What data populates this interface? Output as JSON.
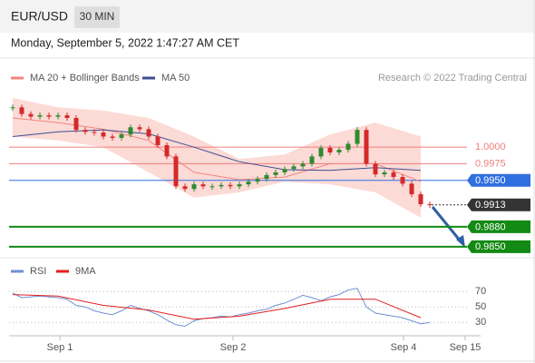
{
  "header": {
    "symbol": "EUR/USD",
    "timeframe": "30 MIN",
    "timestamp": "Monday, September 5, 2022 1:47:27 AM CET"
  },
  "chart_data": [
    {
      "type": "candlestick",
      "copyright": "Research © 2022 Trading Central",
      "up_color": "#2f8a2f",
      "down_color": "#d42a2a",
      "close": [
        1.006,
        1.005,
        1.0046,
        1.0048,
        1.0046,
        1.0048,
        1.0044,
        1.0026,
        1.0023,
        1.0022,
        1.0016,
        1.0014,
        1.0019,
        1.003,
        1.0027,
        1.0016,
        1.0003,
        0.9986,
        0.9941,
        0.9937,
        0.9944,
        0.9941,
        0.9941,
        0.9943,
        0.9941,
        0.9944,
        0.9948,
        0.9952,
        0.9958,
        0.9962,
        0.9967,
        0.9971,
        0.9975,
        0.9986,
        0.9999,
        0.9992,
        0.9996,
        1.0005,
        1.0026,
        0.9975,
        0.9959,
        0.9962,
        0.9955,
        0.9945,
        0.9929,
        0.9914,
        0.9913
      ],
      "series": [
        {
          "name": "MA 20 + Bollinger Bands",
          "color": "#f4847c",
          "band_color": "#fcdad6",
          "x": [
            0,
            5,
            10,
            15,
            20,
            25,
            30,
            35,
            40,
            45
          ],
          "values": [
            1.0044,
            1.0037,
            1.0027,
            1.001,
            0.9962,
            0.9951,
            0.9955,
            0.9975,
            0.9975,
            0.9948
          ],
          "upper": [
            1.0074,
            1.006,
            1.0055,
            1.0044,
            1.0016,
            0.9982,
            0.9989,
            1.0019,
            1.0037,
            1.0016
          ],
          "lower": [
            1.0016,
            1.001,
            1.0,
            0.9962,
            0.9924,
            0.9932,
            0.9948,
            0.9944,
            0.9932,
            0.9894
          ]
        },
        {
          "name": "MA 50",
          "color": "#3b4f91",
          "x": [
            0,
            5,
            10,
            15,
            20,
            25,
            30,
            35,
            40,
            45
          ],
          "values": [
            1.0016,
            1.0023,
            1.0026,
            1.002,
            1.0,
            0.9978,
            0.9966,
            0.9965,
            0.9969,
            0.9965
          ]
        }
      ],
      "levels": [
        {
          "value": 1,
          "label": "1.0000",
          "color": "#f07f7f",
          "marker": "text",
          "line": "thin"
        },
        {
          "value": 0.9975,
          "label": "0.9975",
          "color": "#f07f7f",
          "marker": "text",
          "line": "thin"
        },
        {
          "value": 0.995,
          "label": "0.9950",
          "color": "#2f6fe0",
          "marker": "box",
          "line": "thin"
        },
        {
          "value": 0.9913,
          "label": "0.9913",
          "color": "#333333",
          "marker": "box",
          "line": "dotted"
        },
        {
          "value": 0.988,
          "label": "0.9880",
          "color": "#138a13",
          "marker": "box",
          "line": "thick"
        },
        {
          "value": 0.985,
          "label": "0.9850",
          "color": "#138a13",
          "marker": "box",
          "line": "thick"
        }
      ],
      "ylim": [
        0.9832,
        1.0085
      ],
      "xlim": [
        -0.4,
        50.1
      ]
    },
    {
      "type": "line",
      "series": [
        {
          "name": "RSI",
          "color": "#6f8fd6",
          "values": [
            68,
            62,
            63,
            64,
            63,
            62,
            60,
            52,
            50,
            45,
            42,
            40,
            45,
            52,
            48,
            45,
            40,
            33,
            27,
            25,
            32,
            35,
            36,
            38,
            37,
            40,
            42,
            45,
            47,
            52,
            55,
            60,
            65,
            62,
            58,
            63,
            66,
            72,
            74,
            50,
            42,
            40,
            38,
            36,
            32,
            28,
            30
          ]
        },
        {
          "name": "9MA",
          "color": "#e21f1f",
          "x": [
            0,
            5,
            10,
            15,
            20,
            25,
            30,
            35,
            40,
            45
          ],
          "values": [
            66,
            64,
            52,
            46,
            34,
            38,
            48,
            60,
            60,
            36
          ]
        }
      ],
      "ylim": [
        15,
        89
      ],
      "yticks": [
        70,
        50,
        30
      ],
      "xlim": [
        -0.4,
        50.1
      ],
      "xticks": [
        {
          "value": 5.2,
          "label": "Sep 1"
        },
        {
          "value": 24.3,
          "label": "Sep 2"
        },
        {
          "value": 43.1,
          "label": "Sep 4"
        },
        {
          "value": 49.9,
          "label": "Sep 15"
        }
      ]
    }
  ]
}
